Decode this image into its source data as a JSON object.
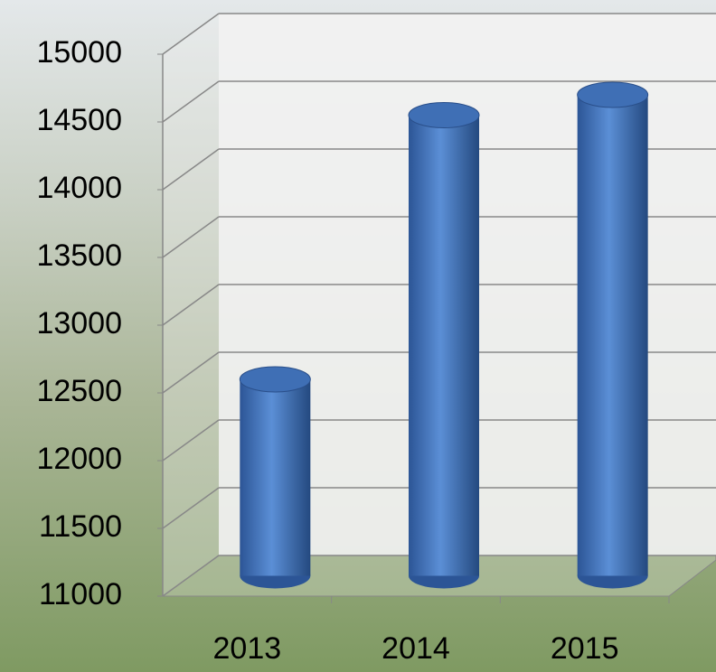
{
  "chart_data": {
    "type": "bar",
    "categories": [
      "2013",
      "2014",
      "2015"
    ],
    "values": [
      12450,
      14400,
      14550
    ],
    "color": "#3f6fb5",
    "ylim": [
      11000,
      15000
    ],
    "yticks": [
      11000,
      11500,
      12000,
      12500,
      13000,
      13500,
      14000,
      14500,
      15000
    ],
    "grid": true
  }
}
